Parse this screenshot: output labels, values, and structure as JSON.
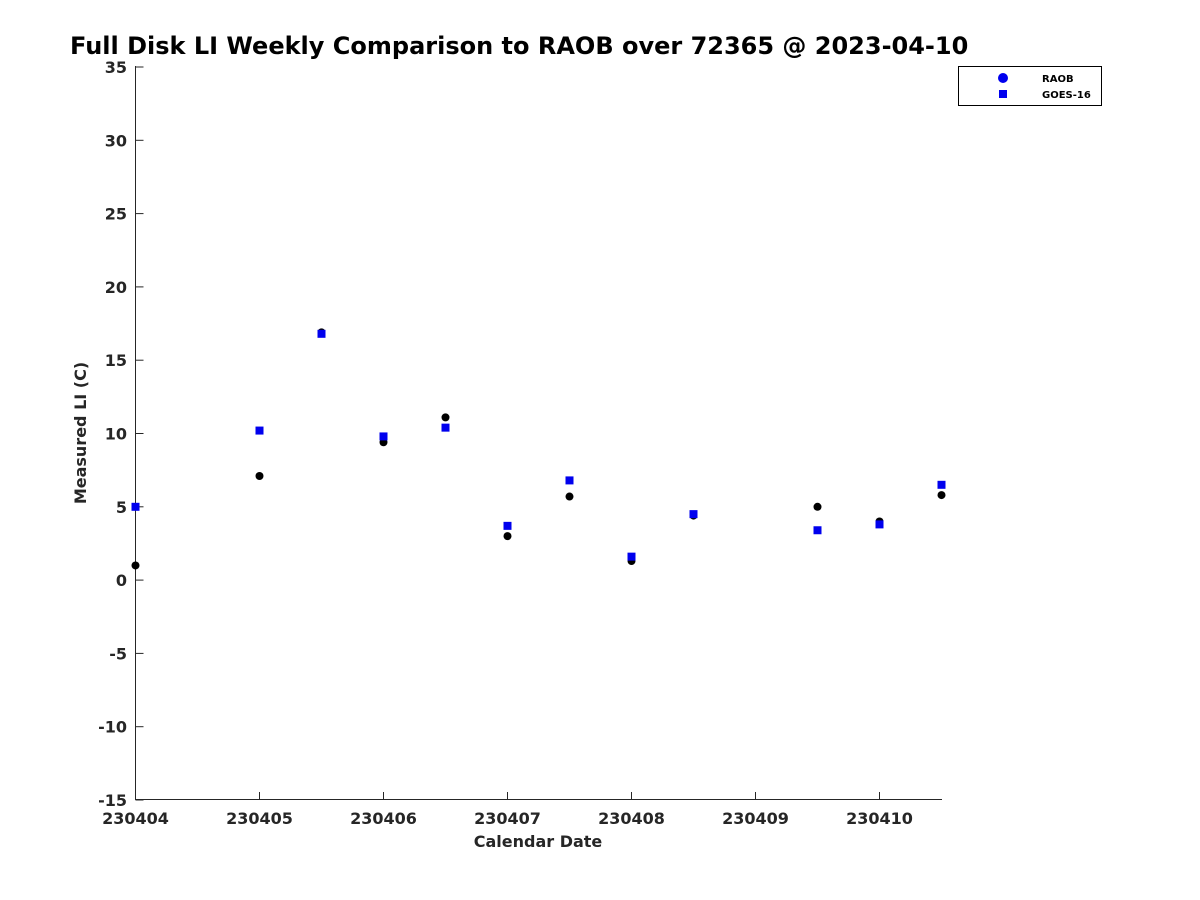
{
  "chart_data": {
    "type": "scatter",
    "title": "Full Disk LI Weekly Comparison to RAOB over 72365 @ 2023-04-10",
    "xlabel": "Calendar Date",
    "ylabel": "Measured LI (C)",
    "xlim": [
      230404,
      230410.5
    ],
    "ylim": [
      -15,
      35
    ],
    "xticks": [
      230404,
      230405,
      230406,
      230407,
      230408,
      230409,
      230410
    ],
    "xtick_labels": [
      "230404",
      "230405",
      "230406",
      "230407",
      "230408",
      "230409",
      "230410"
    ],
    "yticks": [
      -15,
      -10,
      -5,
      0,
      5,
      10,
      15,
      20,
      25,
      30,
      35
    ],
    "ytick_labels": [
      "-15",
      "-10",
      "-5",
      "0",
      "5",
      "10",
      "15",
      "20",
      "25",
      "30",
      "35"
    ],
    "grid": false,
    "legend": {
      "placement": "top-right"
    },
    "series": [
      {
        "name": "RAOB",
        "marker": "circle",
        "color": "#000000",
        "legend_color": "#0000ee",
        "x": [
          230404,
          230405,
          230405.5,
          230406,
          230406.5,
          230407,
          230407.5,
          230408,
          230408.5,
          230409.5,
          230410,
          230410.5
        ],
        "y": [
          1.0,
          7.1,
          16.9,
          9.4,
          11.1,
          3.0,
          5.7,
          1.3,
          4.4,
          5.0,
          4.0,
          5.8
        ]
      },
      {
        "name": "GOES-16",
        "marker": "square",
        "color": "#0000ee",
        "legend_color": "#0000ee",
        "x": [
          230404,
          230405,
          230405.5,
          230406,
          230406.5,
          230407,
          230407.5,
          230408,
          230408.5,
          230409.5,
          230410,
          230410.5
        ],
        "y": [
          5.0,
          10.2,
          16.8,
          9.8,
          10.4,
          3.7,
          6.8,
          1.6,
          4.5,
          3.4,
          3.8,
          6.5
        ]
      }
    ]
  }
}
